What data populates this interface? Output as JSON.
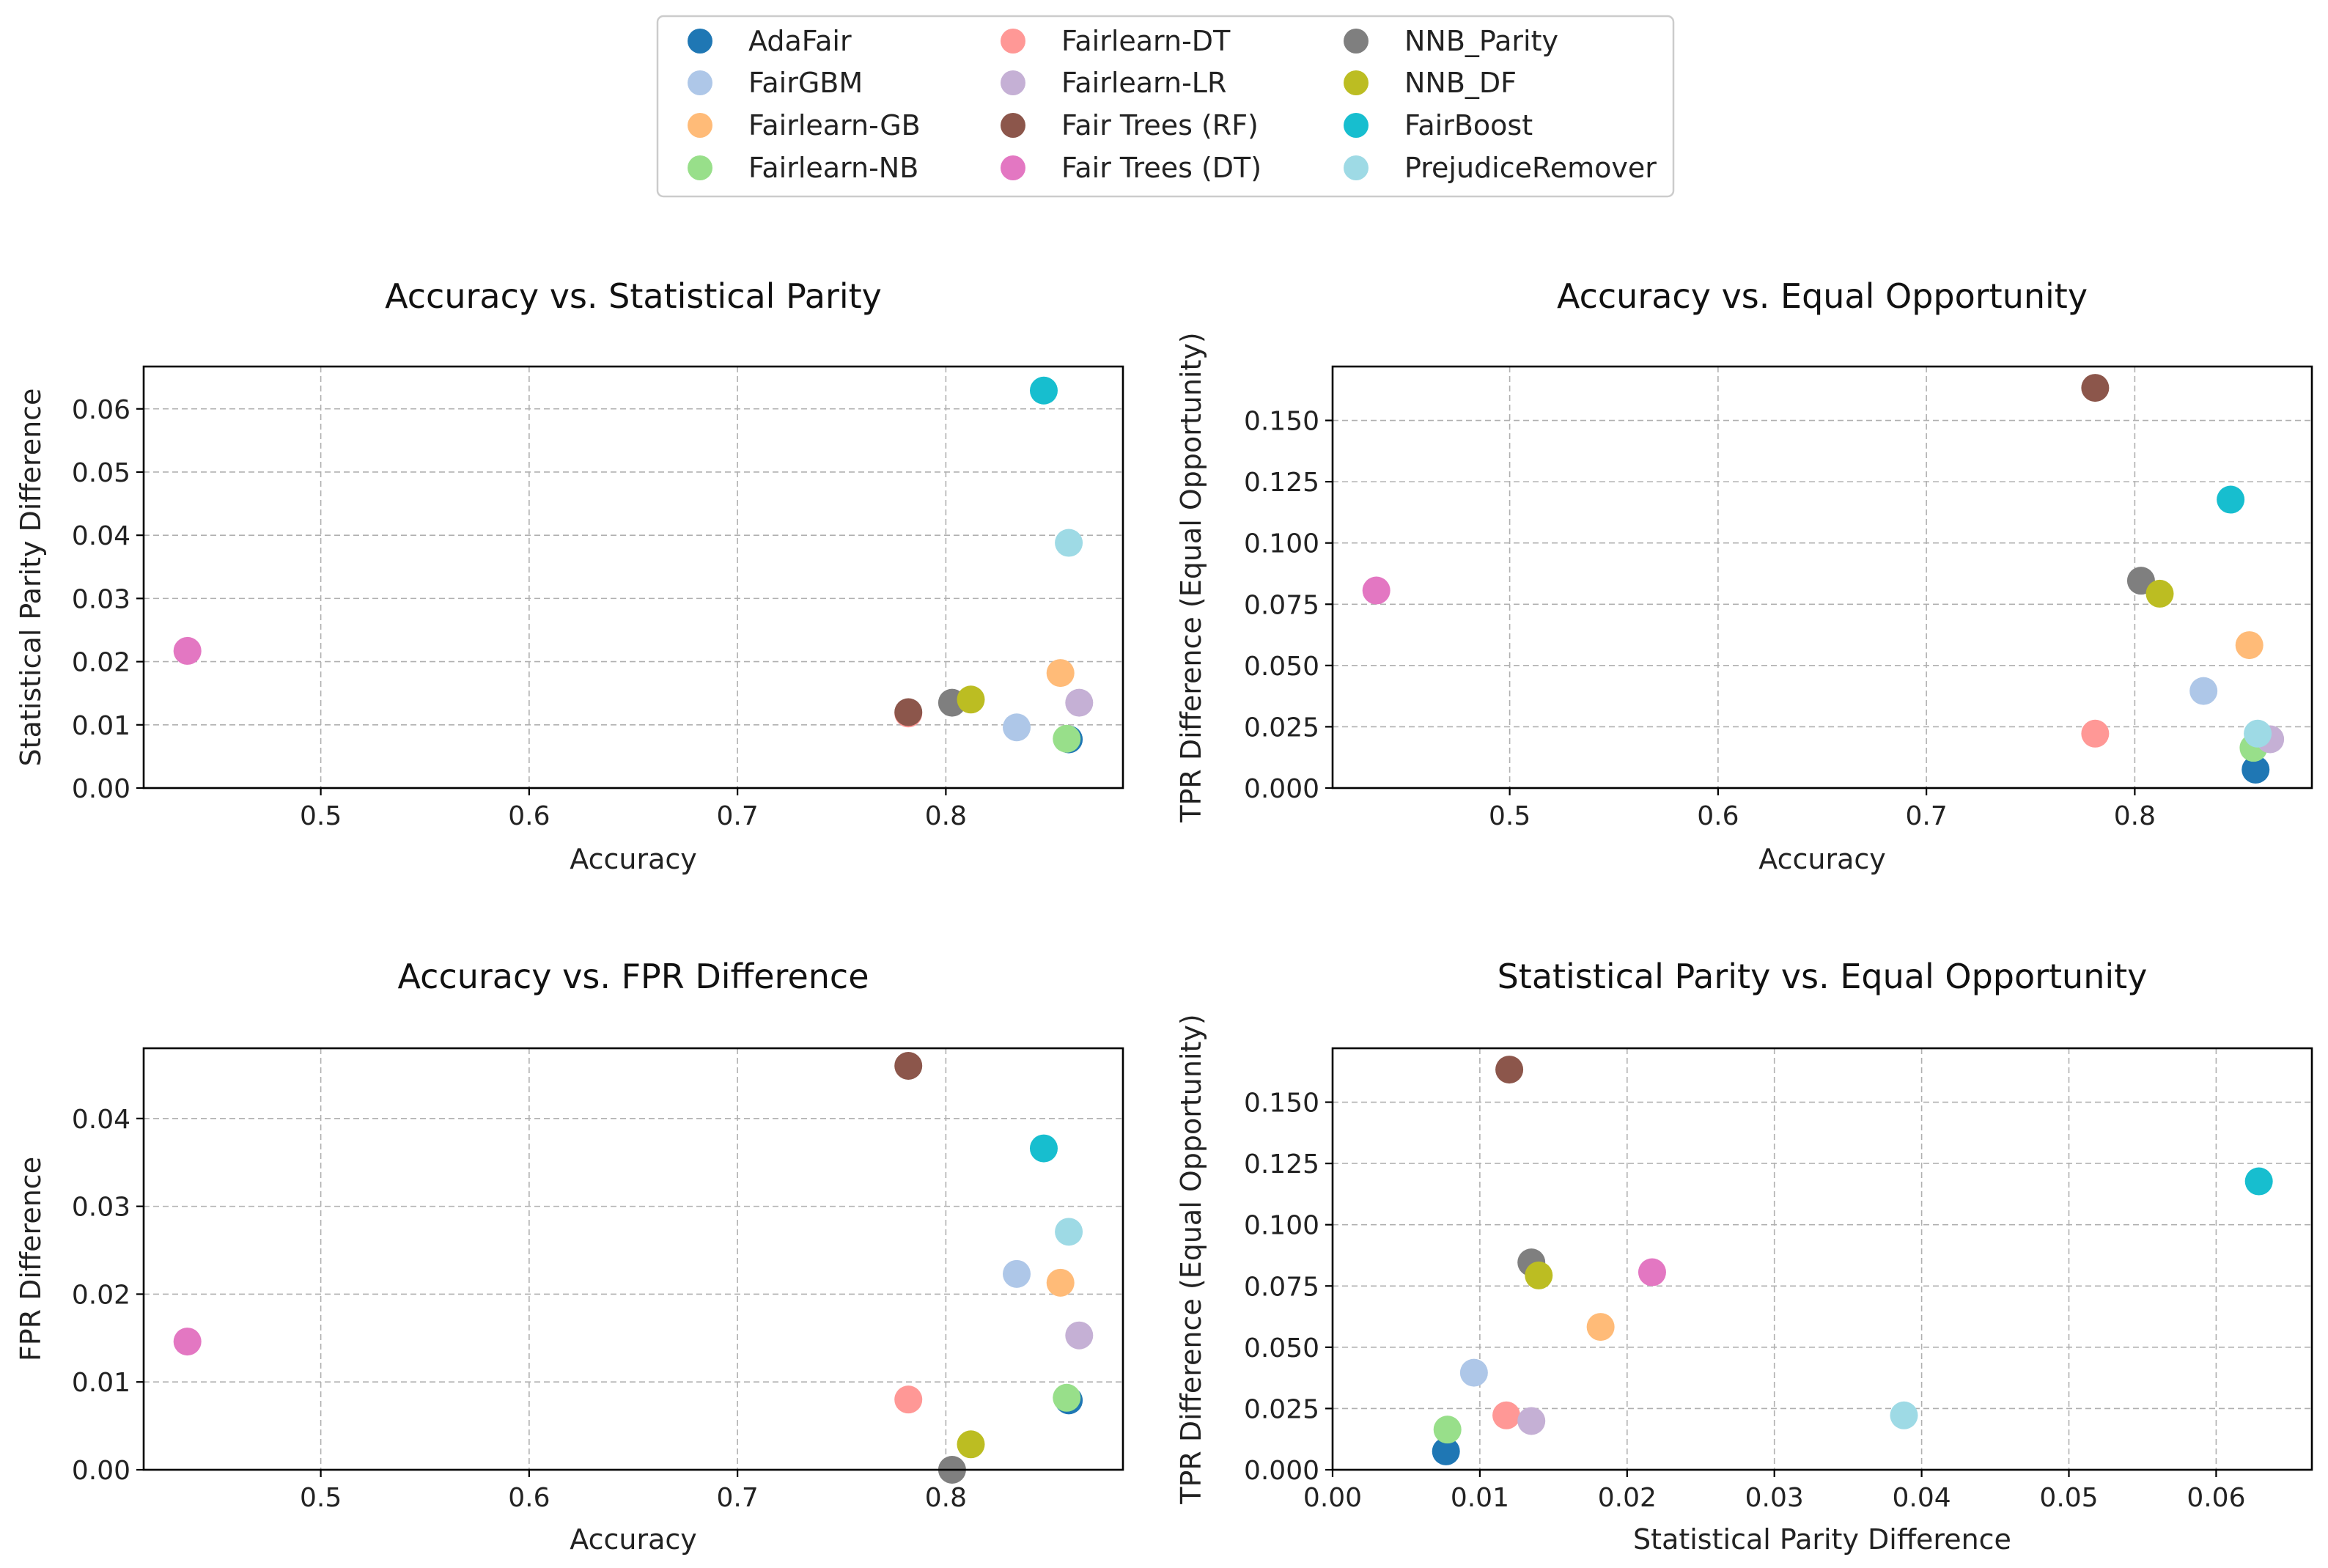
{
  "legend": {
    "placement": "top-center",
    "entries": [
      {
        "name": "AdaFair",
        "color": "#1f77b4"
      },
      {
        "name": "FairGBM",
        "color": "#aec7e8"
      },
      {
        "name": "Fairlearn-GB",
        "color": "#ffbb78"
      },
      {
        "name": "Fairlearn-NB",
        "color": "#98df8a"
      },
      {
        "name": "Fairlearn-DT",
        "color": "#ff9896"
      },
      {
        "name": "Fairlearn-LR",
        "color": "#c5b0d5"
      },
      {
        "name": "Fair Trees (RF)",
        "color": "#8c564b"
      },
      {
        "name": "Fair Trees (DT)",
        "color": "#e377c2"
      },
      {
        "name": "NNB_Parity",
        "color": "#7f7f7f"
      },
      {
        "name": "NNB_DF",
        "color": "#bcbd22"
      },
      {
        "name": "FairBoost",
        "color": "#17becf"
      },
      {
        "name": "PrejudiceRemover",
        "color": "#9edae5"
      }
    ]
  },
  "chart_data": [
    {
      "type": "scatter",
      "title": "Accuracy vs. Statistical Parity",
      "xlabel": "Accuracy",
      "ylabel": "Statistical Parity Difference",
      "xlim": [
        0.415,
        0.885
      ],
      "ylim": [
        0.0,
        0.0667
      ],
      "xticks": [
        0.5,
        0.6,
        0.7,
        0.8
      ],
      "xticklabels": [
        "0.5",
        "0.6",
        "0.7",
        "0.8"
      ],
      "yticks": [
        0.0,
        0.01,
        0.02,
        0.03,
        0.04,
        0.05,
        0.06
      ],
      "yticklabels": [
        "0.00",
        "0.01",
        "0.02",
        "0.03",
        "0.04",
        "0.05",
        "0.06"
      ],
      "grid": true,
      "points": [
        {
          "series": "AdaFair",
          "x": 0.859,
          "y": 0.0077
        },
        {
          "series": "FairGBM",
          "x": 0.834,
          "y": 0.0096
        },
        {
          "series": "Fairlearn-GB",
          "x": 0.855,
          "y": 0.0182
        },
        {
          "series": "Fairlearn-NB",
          "x": 0.858,
          "y": 0.0078
        },
        {
          "series": "Fairlearn-DT",
          "x": 0.782,
          "y": 0.0118
        },
        {
          "series": "Fairlearn-LR",
          "x": 0.864,
          "y": 0.0135
        },
        {
          "series": "Fair Trees (RF)",
          "x": 0.782,
          "y": 0.012
        },
        {
          "series": "Fair Trees (DT)",
          "x": 0.436,
          "y": 0.0217
        },
        {
          "series": "NNB_Parity",
          "x": 0.803,
          "y": 0.0135
        },
        {
          "series": "NNB_DF",
          "x": 0.812,
          "y": 0.014
        },
        {
          "series": "FairBoost",
          "x": 0.847,
          "y": 0.0629
        },
        {
          "series": "PrejudiceRemover",
          "x": 0.859,
          "y": 0.0388
        }
      ]
    },
    {
      "type": "scatter",
      "title": "Accuracy vs. Equal Opportunity",
      "xlabel": "Accuracy",
      "ylabel": "TPR Difference (Equal Opportunity)",
      "xlim": [
        0.415,
        0.885
      ],
      "ylim": [
        0.0,
        0.172
      ],
      "xticks": [
        0.5,
        0.6,
        0.7,
        0.8
      ],
      "xticklabels": [
        "0.5",
        "0.6",
        "0.7",
        "0.8"
      ],
      "yticks": [
        0.0,
        0.025,
        0.05,
        0.075,
        0.1,
        0.125,
        0.15
      ],
      "yticklabels": [
        "0.000",
        "0.025",
        "0.050",
        "0.075",
        "0.100",
        "0.125",
        "0.150"
      ],
      "grid": true,
      "points": [
        {
          "series": "AdaFair",
          "x": 0.858,
          "y": 0.0075
        },
        {
          "series": "FairGBM",
          "x": 0.833,
          "y": 0.0396
        },
        {
          "series": "Fairlearn-GB",
          "x": 0.855,
          "y": 0.0583
        },
        {
          "series": "Fairlearn-NB",
          "x": 0.857,
          "y": 0.0164
        },
        {
          "series": "Fairlearn-DT",
          "x": 0.781,
          "y": 0.0222
        },
        {
          "series": "Fairlearn-LR",
          "x": 0.865,
          "y": 0.0199
        },
        {
          "series": "Fair Trees (RF)",
          "x": 0.781,
          "y": 0.1633
        },
        {
          "series": "Fair Trees (DT)",
          "x": 0.436,
          "y": 0.0806
        },
        {
          "series": "NNB_Parity",
          "x": 0.803,
          "y": 0.0846
        },
        {
          "series": "NNB_DF",
          "x": 0.812,
          "y": 0.0793
        },
        {
          "series": "FairBoost",
          "x": 0.846,
          "y": 0.1177
        },
        {
          "series": "PrejudiceRemover",
          "x": 0.859,
          "y": 0.0222
        }
      ]
    },
    {
      "type": "scatter",
      "title": "Accuracy vs. FPR Difference",
      "xlabel": "Accuracy",
      "ylabel": "FPR Difference",
      "xlim": [
        0.415,
        0.885
      ],
      "ylim": [
        0.0,
        0.048
      ],
      "xticks": [
        0.5,
        0.6,
        0.7,
        0.8
      ],
      "xticklabels": [
        "0.5",
        "0.6",
        "0.7",
        "0.8"
      ],
      "yticks": [
        0.0,
        0.01,
        0.02,
        0.03,
        0.04
      ],
      "yticklabels": [
        "0.00",
        "0.01",
        "0.02",
        "0.03",
        "0.04"
      ],
      "grid": true,
      "points": [
        {
          "series": "AdaFair",
          "x": 0.859,
          "y": 0.0079
        },
        {
          "series": "FairGBM",
          "x": 0.834,
          "y": 0.0223
        },
        {
          "series": "Fairlearn-GB",
          "x": 0.855,
          "y": 0.0213
        },
        {
          "series": "Fairlearn-NB",
          "x": 0.858,
          "y": 0.0082
        },
        {
          "series": "Fairlearn-DT",
          "x": 0.782,
          "y": 0.008
        },
        {
          "series": "Fairlearn-LR",
          "x": 0.864,
          "y": 0.0153
        },
        {
          "series": "Fair Trees (RF)",
          "x": 0.782,
          "y": 0.046
        },
        {
          "series": "Fair Trees (DT)",
          "x": 0.436,
          "y": 0.0146
        },
        {
          "series": "NNB_Parity",
          "x": 0.803,
          "y": 0.0
        },
        {
          "series": "NNB_DF",
          "x": 0.812,
          "y": 0.0029
        },
        {
          "series": "FairBoost",
          "x": 0.847,
          "y": 0.0366
        },
        {
          "series": "PrejudiceRemover",
          "x": 0.859,
          "y": 0.0271
        }
      ]
    },
    {
      "type": "scatter",
      "title": "Statistical Parity vs. Equal Opportunity",
      "xlabel": "Statistical Parity Difference",
      "ylabel": "TPR Difference (Equal Opportunity)",
      "xlim": [
        0.0,
        0.0665
      ],
      "ylim": [
        0.0,
        0.172
      ],
      "xticks": [
        0.0,
        0.01,
        0.02,
        0.03,
        0.04,
        0.05,
        0.06
      ],
      "xticklabels": [
        "0.00",
        "0.01",
        "0.02",
        "0.03",
        "0.04",
        "0.05",
        "0.06"
      ],
      "yticks": [
        0.0,
        0.025,
        0.05,
        0.075,
        0.1,
        0.125,
        0.15
      ],
      "yticklabels": [
        "0.000",
        "0.025",
        "0.050",
        "0.075",
        "0.100",
        "0.125",
        "0.150"
      ],
      "grid": true,
      "points": [
        {
          "series": "AdaFair",
          "x": 0.0077,
          "y": 0.0075
        },
        {
          "series": "FairGBM",
          "x": 0.0096,
          "y": 0.0396
        },
        {
          "series": "Fairlearn-GB",
          "x": 0.0182,
          "y": 0.0583
        },
        {
          "series": "Fairlearn-NB",
          "x": 0.0078,
          "y": 0.0164
        },
        {
          "series": "Fairlearn-DT",
          "x": 0.0118,
          "y": 0.0222
        },
        {
          "series": "Fairlearn-LR",
          "x": 0.0135,
          "y": 0.0199
        },
        {
          "series": "Fair Trees (RF)",
          "x": 0.012,
          "y": 0.1633
        },
        {
          "series": "Fair Trees (DT)",
          "x": 0.0217,
          "y": 0.0806
        },
        {
          "series": "NNB_Parity",
          "x": 0.0135,
          "y": 0.0846
        },
        {
          "series": "NNB_DF",
          "x": 0.014,
          "y": 0.0793
        },
        {
          "series": "FairBoost",
          "x": 0.0629,
          "y": 0.1177
        },
        {
          "series": "PrejudiceRemover",
          "x": 0.0388,
          "y": 0.0222
        }
      ]
    }
  ]
}
